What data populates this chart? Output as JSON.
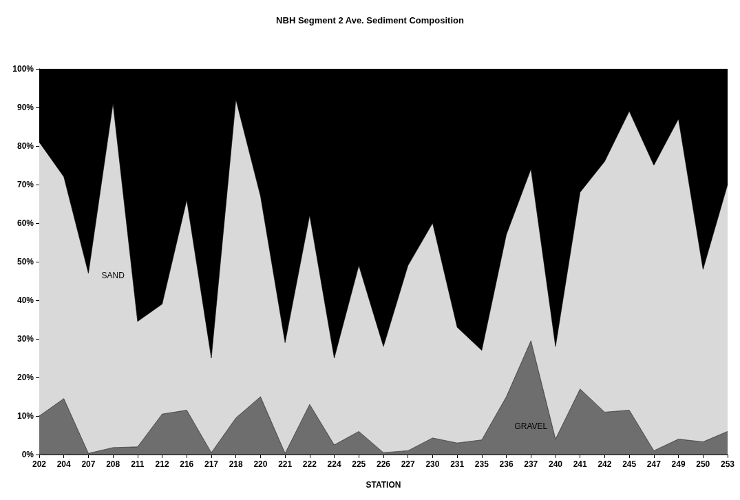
{
  "chart_data": {
    "type": "area",
    "title": "NBH Segment 2 Ave. Sediment Composition",
    "xlabel": "STATION",
    "stacked": true,
    "categories": [
      "202",
      "204",
      "207",
      "208",
      "211",
      "212",
      "216",
      "217",
      "218",
      "220",
      "221",
      "222",
      "224",
      "225",
      "226",
      "227",
      "230",
      "231",
      "235",
      "236",
      "237",
      "240",
      "241",
      "242",
      "245",
      "247",
      "249",
      "250",
      "253"
    ],
    "series": [
      {
        "name": "GRAVEL",
        "color": "#6e6e6e",
        "values": [
          10,
          14.5,
          0.3,
          1.8,
          2,
          10.5,
          11.5,
          0.5,
          9.5,
          15,
          0.3,
          13,
          2.5,
          6,
          0.5,
          1,
          4.3,
          3,
          3.8,
          15,
          29.5,
          4,
          17,
          11,
          11.5,
          1,
          4,
          3.3,
          6
        ]
      },
      {
        "name": "SAND",
        "color": "#d9d9d9",
        "values": [
          71,
          57.5,
          46.7,
          89.2,
          32.5,
          28.5,
          54.5,
          24.5,
          82.5,
          52,
          28.7,
          49,
          22.5,
          43,
          27.5,
          48,
          55.7,
          30,
          23.2,
          42,
          44.5,
          24,
          51,
          65,
          77.5,
          74,
          83,
          44.7,
          64
        ]
      },
      {
        "color": "#000000",
        "values": [
          19,
          28,
          53,
          9,
          65.5,
          61,
          34,
          75,
          8,
          33,
          71,
          38,
          75,
          51,
          72,
          51,
          40,
          67,
          73,
          43,
          26,
          72,
          32,
          24,
          11,
          25,
          13,
          52,
          30
        ]
      }
    ],
    "ylim": [
      0,
      100
    ],
    "yticks": [
      {
        "value": 0,
        "label": "0%"
      },
      {
        "value": 10,
        "label": "10%"
      },
      {
        "value": 20,
        "label": "20%"
      },
      {
        "value": 30,
        "label": "30%"
      },
      {
        "value": 40,
        "label": "40%"
      },
      {
        "value": 50,
        "label": "50%"
      },
      {
        "value": 60,
        "label": "60%"
      },
      {
        "value": 70,
        "label": "70%"
      },
      {
        "value": 80,
        "label": "80%"
      },
      {
        "value": 90,
        "label": "90%"
      },
      {
        "value": 100,
        "label": "100%"
      }
    ]
  }
}
